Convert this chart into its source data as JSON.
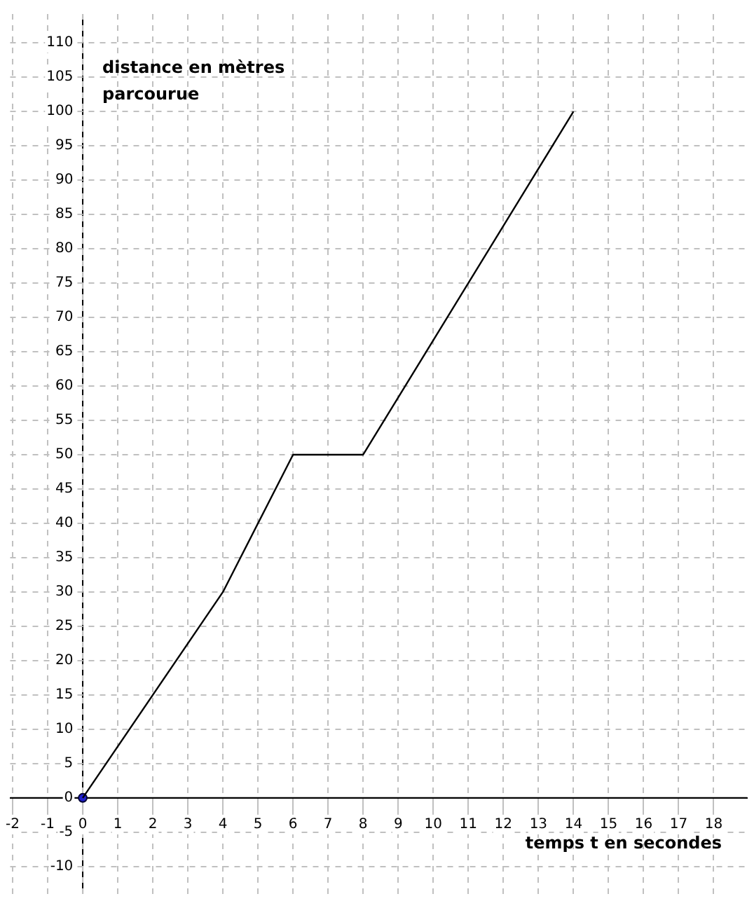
{
  "chart_data": {
    "type": "line",
    "xlabel": "temps t en secondes",
    "ylabel": "distance en mètres parcourue",
    "xlim": [
      -2.07,
      18.95
    ],
    "ylim": [
      -14,
      114.2
    ],
    "xticks": [
      -2,
      -1,
      0,
      1,
      2,
      3,
      4,
      5,
      6,
      7,
      8,
      9,
      10,
      11,
      12,
      13,
      14,
      15,
      16,
      17,
      18
    ],
    "yticks": [
      -10,
      -5,
      0,
      5,
      10,
      15,
      20,
      25,
      30,
      35,
      40,
      45,
      50,
      55,
      60,
      65,
      70,
      75,
      80,
      85,
      90,
      95,
      100,
      105,
      110
    ],
    "series": [
      {
        "type": "line",
        "color": "#000000",
        "x": [
          0,
          4,
          6,
          8,
          14
        ],
        "values": [
          0,
          30,
          50,
          50,
          100
        ],
        "marker": "none"
      },
      {
        "type": "scatter",
        "color": "#1f1fcc",
        "x": [
          0
        ],
        "values": [
          0
        ],
        "marker": "circle"
      }
    ],
    "grid": true,
    "legend": false
  }
}
